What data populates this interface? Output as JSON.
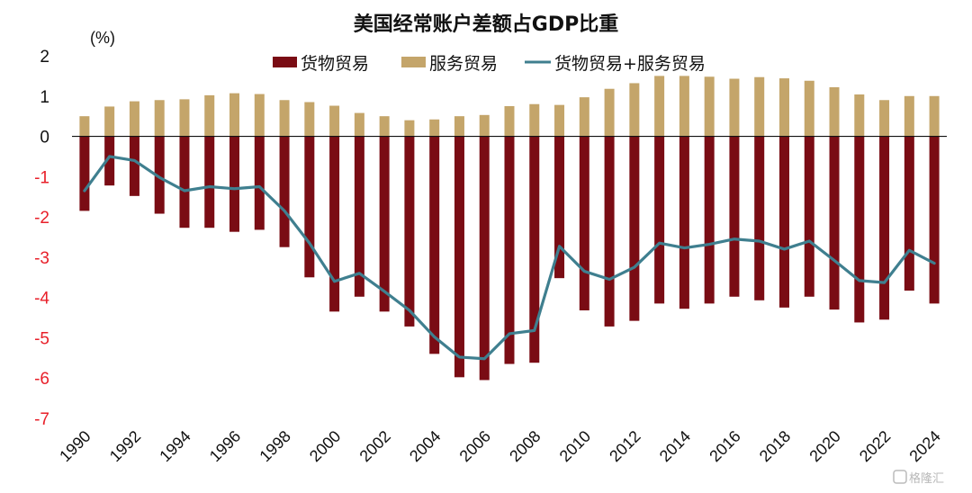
{
  "chart_data": {
    "type": "bar",
    "title": "美国经常账户差额占GDP比重",
    "ylabel": "(%)",
    "ylim": [
      -7,
      2
    ],
    "yticks": [
      2,
      1,
      0,
      -1,
      -2,
      -3,
      -4,
      -5,
      -6,
      -7
    ],
    "categories": [
      "1990",
      "1991",
      "1992",
      "1993",
      "1994",
      "1995",
      "1996",
      "1997",
      "1998",
      "1999",
      "2000",
      "2001",
      "2002",
      "2003",
      "2004",
      "2005",
      "2006",
      "2007",
      "2008",
      "2009",
      "2010",
      "2011",
      "2012",
      "2013",
      "2014",
      "2015",
      "2016",
      "2017",
      "2018",
      "2019",
      "2020",
      "2021",
      "2022",
      "2023",
      "2024"
    ],
    "xtick_labels": [
      "1990",
      "1992",
      "1994",
      "1996",
      "1998",
      "2000",
      "2002",
      "2004",
      "2006",
      "2008",
      "2010",
      "2012",
      "2014",
      "2016",
      "2018",
      "2020",
      "2022",
      "2024"
    ],
    "legend_position": "top-center",
    "series": [
      {
        "name": "货物贸易",
        "kind": "bar",
        "color": "#7a0c14",
        "values": [
          -1.85,
          -1.22,
          -1.48,
          -1.92,
          -2.27,
          -2.27,
          -2.37,
          -2.32,
          -2.75,
          -3.5,
          -4.35,
          -3.98,
          -4.35,
          -4.72,
          -5.4,
          -5.98,
          -6.05,
          -5.65,
          -5.62,
          -3.52,
          -4.32,
          -4.72,
          -4.58,
          -4.15,
          -4.28,
          -4.15,
          -3.98,
          -4.07,
          -4.25,
          -3.98,
          -4.3,
          -4.62,
          -4.55,
          -3.83,
          -4.15
        ]
      },
      {
        "name": "服务贸易",
        "kind": "bar",
        "color": "#c4a56a",
        "values": [
          0.5,
          0.74,
          0.87,
          0.9,
          0.92,
          1.02,
          1.07,
          1.05,
          0.9,
          0.85,
          0.76,
          0.58,
          0.5,
          0.4,
          0.42,
          0.5,
          0.53,
          0.75,
          0.8,
          0.78,
          0.97,
          1.18,
          1.32,
          1.5,
          1.5,
          1.48,
          1.43,
          1.47,
          1.44,
          1.38,
          1.22,
          1.04,
          0.9,
          1.0,
          1.0
        ]
      },
      {
        "name": "货物贸易+服务贸易",
        "kind": "line",
        "color": "#3f7f8f",
        "values": [
          -1.35,
          -0.5,
          -0.6,
          -1.02,
          -1.35,
          -1.25,
          -1.3,
          -1.25,
          -1.85,
          -2.65,
          -3.6,
          -3.4,
          -3.85,
          -4.32,
          -4.98,
          -5.48,
          -5.52,
          -4.9,
          -4.82,
          -2.73,
          -3.35,
          -3.55,
          -3.25,
          -2.65,
          -2.77,
          -2.68,
          -2.55,
          -2.6,
          -2.8,
          -2.6,
          -3.08,
          -3.58,
          -3.63,
          -2.83,
          -3.15
        ]
      }
    ]
  },
  "colors": {
    "positive_tick": "#111111",
    "negative_tick": "#e8202a",
    "zero_line": "#111111"
  },
  "watermark": "格隆汇"
}
